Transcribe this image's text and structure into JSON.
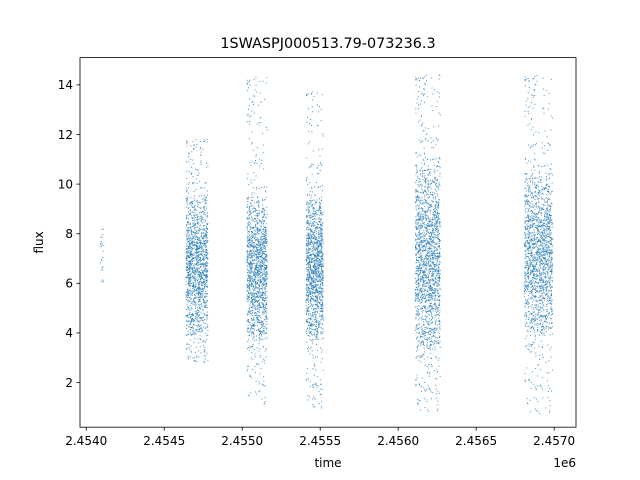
{
  "chart_data": {
    "type": "scatter",
    "title": "1SWASPJ000513.79-073236.3",
    "xlabel": "time",
    "ylabel": "flux",
    "x_offset_label": "1e6",
    "x_scale": 1000000,
    "xlim": [
      2.45396,
      2.45714
    ],
    "ylim": [
      0.2,
      15.1
    ],
    "grid": false,
    "legend": "none",
    "marker_color": "#1f77b4",
    "x_ticks": [
      2.454,
      2.4545,
      2.455,
      2.4555,
      2.456,
      2.4565,
      2.457
    ],
    "x_tick_labels": [
      "2.4540",
      "2.4545",
      "2.4550",
      "2.4555",
      "2.4560",
      "2.4565",
      "2.4570"
    ],
    "y_ticks": [
      2,
      4,
      6,
      8,
      10,
      12,
      14
    ],
    "y_tick_labels": [
      "2",
      "4",
      "6",
      "8",
      "10",
      "12",
      "14"
    ],
    "series": [
      {
        "clusters": [
          {
            "x_min": 2.45409,
            "x_max": 2.45411,
            "y_core_min": 6.2,
            "y_core_max": 8.1,
            "y_min": 6.0,
            "y_max": 8.2,
            "points": 25
          },
          {
            "x_min": 2.45464,
            "x_max": 2.45478,
            "y_core_min": 4.2,
            "y_core_max": 9.2,
            "y_min": 2.8,
            "y_max": 11.8,
            "points": 1500
          },
          {
            "x_min": 2.45503,
            "x_max": 2.45516,
            "y_core_min": 4.0,
            "y_core_max": 9.2,
            "y_min": 1.1,
            "y_max": 14.3,
            "points": 1500
          },
          {
            "x_min": 2.45541,
            "x_max": 2.45552,
            "y_core_min": 4.0,
            "y_core_max": 9.3,
            "y_min": 0.9,
            "y_max": 13.8,
            "points": 1400
          },
          {
            "x_min": 2.45611,
            "x_max": 2.45627,
            "y_core_min": 3.6,
            "y_core_max": 10.5,
            "y_min": 0.8,
            "y_max": 14.4,
            "points": 1900
          },
          {
            "x_min": 2.45681,
            "x_max": 2.45699,
            "y_core_min": 4.2,
            "y_core_max": 10.2,
            "y_min": 0.7,
            "y_max": 14.4,
            "points": 1800
          }
        ]
      }
    ]
  }
}
